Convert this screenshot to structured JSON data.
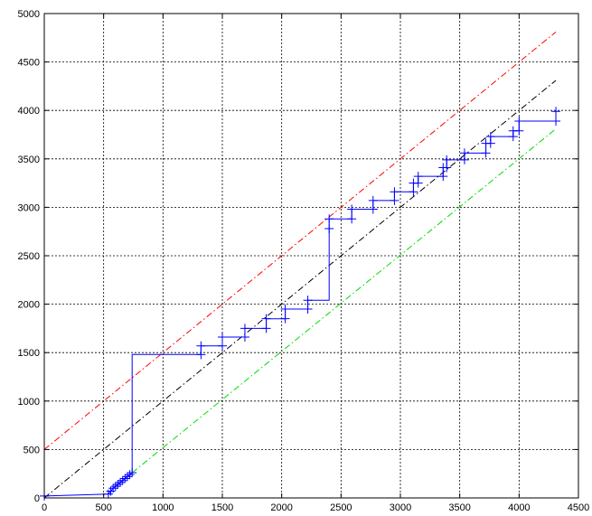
{
  "chart_data": {
    "type": "line",
    "title": "",
    "xlabel": "",
    "ylabel": "",
    "xlim": [
      0,
      4500
    ],
    "ylim": [
      0,
      5000
    ],
    "grid": true,
    "legend": "none",
    "x_ticks": [
      "0",
      "500",
      "1000",
      "1500",
      "2000",
      "2500",
      "3000",
      "3500",
      "4000",
      "4500"
    ],
    "y_ticks": [
      "0",
      "500",
      "1000",
      "1500",
      "2000",
      "2500",
      "3000",
      "3500",
      "4000",
      "4500",
      "5000"
    ],
    "series": [
      {
        "color": "#0000ff",
        "line_style": "solid-step",
        "marker": "plus",
        "points": [
          [
            0,
            20
          ],
          [
            540,
            40
          ],
          [
            560,
            70
          ],
          [
            580,
            100
          ],
          [
            600,
            120
          ],
          [
            620,
            140
          ],
          [
            640,
            160
          ],
          [
            660,
            180
          ],
          [
            680,
            200
          ],
          [
            700,
            220
          ],
          [
            720,
            240
          ],
          [
            740,
            260
          ],
          [
            740,
            1480
          ],
          [
            1320,
            1480
          ],
          [
            1320,
            1570
          ],
          [
            1500,
            1570
          ],
          [
            1500,
            1660
          ],
          [
            1690,
            1660
          ],
          [
            1690,
            1750
          ],
          [
            1870,
            1750
          ],
          [
            1870,
            1850
          ],
          [
            2030,
            1850
          ],
          [
            2030,
            1950
          ],
          [
            2220,
            1950
          ],
          [
            2220,
            2040
          ],
          [
            2400,
            2040
          ],
          [
            2400,
            2780
          ],
          [
            2400,
            2880
          ],
          [
            2590,
            2880
          ],
          [
            2590,
            2980
          ],
          [
            2770,
            2980
          ],
          [
            2770,
            3070
          ],
          [
            2950,
            3070
          ],
          [
            2950,
            3160
          ],
          [
            3110,
            3160
          ],
          [
            3110,
            3250
          ],
          [
            3150,
            3250
          ],
          [
            3150,
            3320
          ],
          [
            3360,
            3320
          ],
          [
            3360,
            3410
          ],
          [
            3390,
            3410
          ],
          [
            3390,
            3490
          ],
          [
            3540,
            3490
          ],
          [
            3540,
            3560
          ],
          [
            3720,
            3560
          ],
          [
            3720,
            3660
          ],
          [
            3760,
            3660
          ],
          [
            3760,
            3730
          ],
          [
            3950,
            3730
          ],
          [
            3950,
            3790
          ],
          [
            4000,
            3790
          ],
          [
            4000,
            3890
          ],
          [
            4310,
            3890
          ],
          [
            4310,
            3990
          ]
        ],
        "markers": [
          [
            0,
            20
          ],
          [
            540,
            40
          ],
          [
            560,
            70
          ],
          [
            580,
            100
          ],
          [
            600,
            120
          ],
          [
            620,
            140
          ],
          [
            640,
            160
          ],
          [
            660,
            180
          ],
          [
            680,
            200
          ],
          [
            700,
            220
          ],
          [
            720,
            240
          ],
          [
            740,
            260
          ],
          [
            1320,
            1480
          ],
          [
            1320,
            1570
          ],
          [
            1500,
            1570
          ],
          [
            1500,
            1660
          ],
          [
            1690,
            1660
          ],
          [
            1690,
            1750
          ],
          [
            1870,
            1750
          ],
          [
            1870,
            1850
          ],
          [
            2030,
            1850
          ],
          [
            2030,
            1950
          ],
          [
            2220,
            1950
          ],
          [
            2220,
            2040
          ],
          [
            2400,
            2780
          ],
          [
            2400,
            2880
          ],
          [
            2590,
            2880
          ],
          [
            2590,
            2980
          ],
          [
            2770,
            2980
          ],
          [
            2770,
            3070
          ],
          [
            2950,
            3070
          ],
          [
            2950,
            3160
          ],
          [
            3110,
            3160
          ],
          [
            3110,
            3250
          ],
          [
            3150,
            3250
          ],
          [
            3150,
            3320
          ],
          [
            3360,
            3320
          ],
          [
            3360,
            3410
          ],
          [
            3390,
            3410
          ],
          [
            3390,
            3490
          ],
          [
            3540,
            3490
          ],
          [
            3540,
            3560
          ],
          [
            3720,
            3560
          ],
          [
            3720,
            3660
          ],
          [
            3760,
            3660
          ],
          [
            3760,
            3730
          ],
          [
            3950,
            3730
          ],
          [
            3950,
            3790
          ],
          [
            4000,
            3790
          ],
          [
            4000,
            3890
          ],
          [
            4310,
            3890
          ],
          [
            4310,
            3990
          ]
        ]
      },
      {
        "color": "#ff0000",
        "line_style": "dash-dot",
        "points": [
          [
            0,
            500
          ],
          [
            4310,
            4810
          ]
        ]
      },
      {
        "color": "#000000",
        "line_style": "dash-dot",
        "points": [
          [
            0,
            0
          ],
          [
            4310,
            4310
          ]
        ]
      },
      {
        "color": "#00dd00",
        "line_style": "dash-dot",
        "points": [
          [
            740,
            260
          ],
          [
            4310,
            3810
          ]
        ]
      }
    ]
  }
}
